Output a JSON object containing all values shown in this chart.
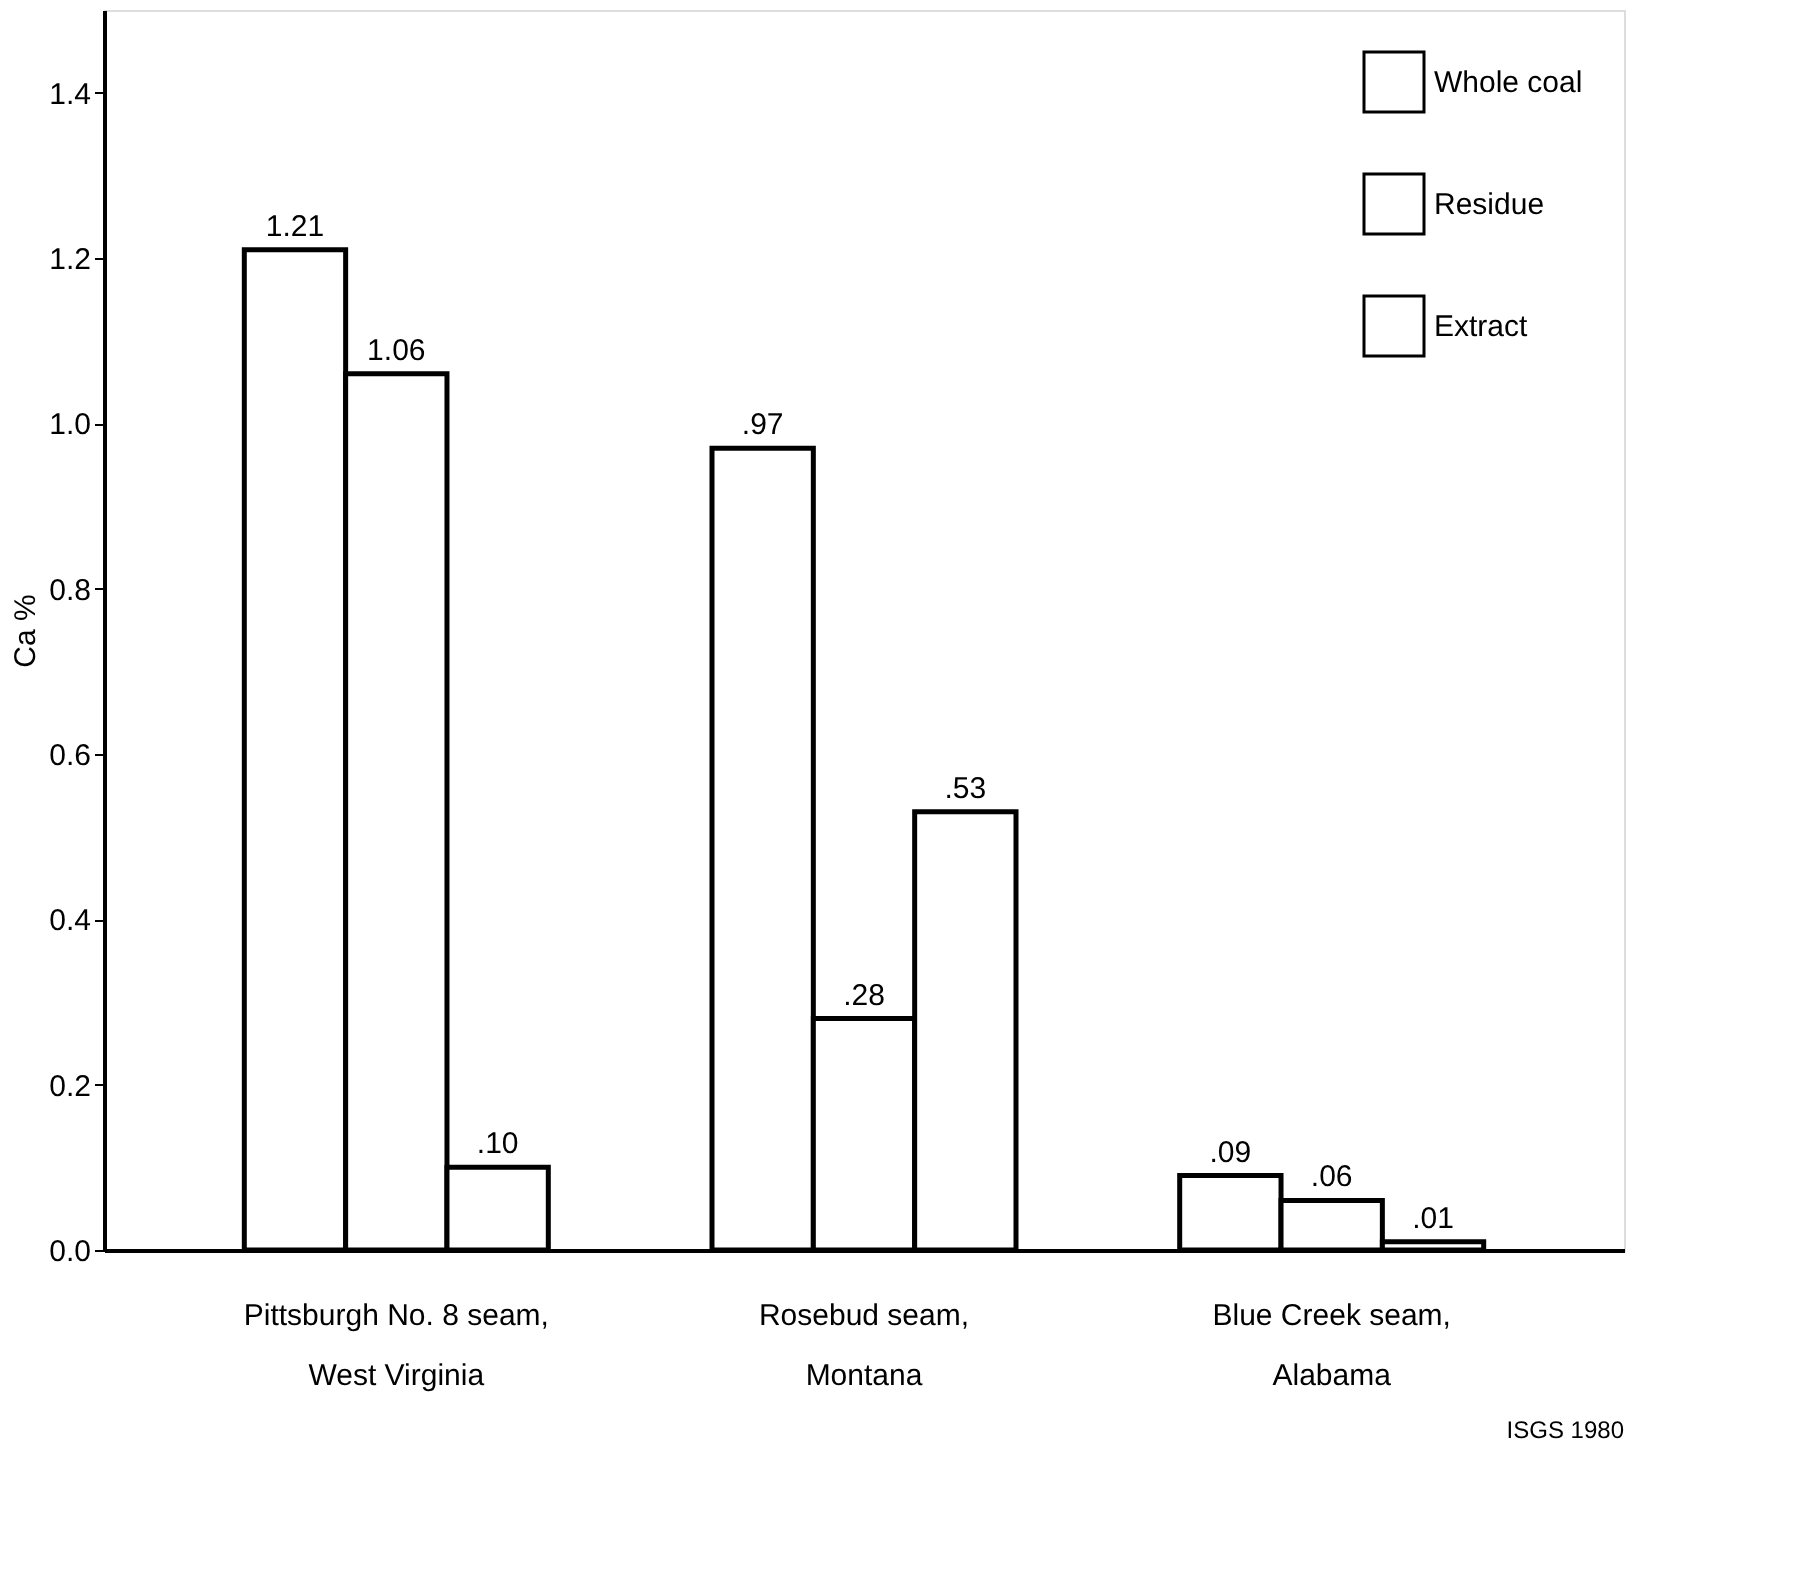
{
  "chart_data": {
    "type": "bar",
    "ylabel": "Ca %",
    "categories": [
      "Pittsburgh No. 8 seam,\nWest Virginia",
      "Rosebud seam,\nMontana",
      "Blue Creek seam,\nAlabama"
    ],
    "series": [
      {
        "name": "Whole coal",
        "color": "#ffffff",
        "values": [
          1.21,
          0.97,
          0.09
        ],
        "value_labels": [
          "1.21",
          ".97",
          ".09"
        ]
      },
      {
        "name": "Residue",
        "color": "#ffffff",
        "values": [
          1.06,
          0.28,
          0.06
        ],
        "value_labels": [
          "1.06",
          ".28",
          ".06"
        ]
      },
      {
        "name": "Extract",
        "color": "#ffffff",
        "values": [
          0.1,
          0.53,
          0.01
        ],
        "value_labels": [
          ".10",
          ".53",
          ".01"
        ]
      }
    ],
    "ylim": [
      0,
      1.5
    ],
    "yticks": [
      {
        "value": 0,
        "label": "0.0"
      },
      {
        "value": 0.2,
        "label": "0.2"
      },
      {
        "value": 0.4,
        "label": "0.4"
      },
      {
        "value": 0.6,
        "label": "0.6"
      },
      {
        "value": 0.8,
        "label": "0.8"
      },
      {
        "value": 1.0,
        "label": "1.0"
      },
      {
        "value": 1.2,
        "label": "1.2"
      },
      {
        "value": 1.4,
        "label": "1.4"
      }
    ],
    "legend": "top right",
    "grid": false,
    "annotations": [
      "ISGS 1980"
    ]
  }
}
